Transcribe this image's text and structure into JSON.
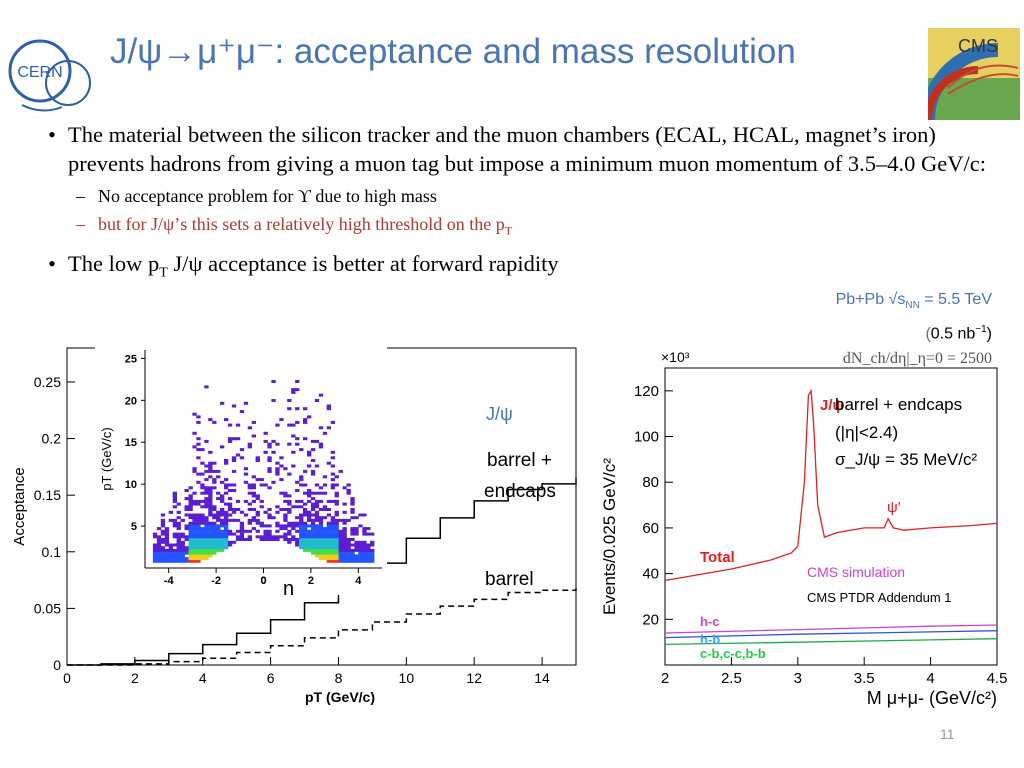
{
  "header": {
    "title": "J/ψ→μ⁺μ⁻: acceptance and mass resolution",
    "cern_logo_text": "CERN",
    "cms_logo_text": "CMS"
  },
  "bullets": {
    "b1": "The material between the silicon tracker and the muon chambers (ECAL, HCAL, magnet’s iron) prevents hadrons from giving a muon tag but impose a minimum muon momentum of 3.5–4.0 GeV/c:",
    "sub1": "No acceptance problem for ϒ due to high mass",
    "sub2_a": "but for J/ψ’s this sets a relatively high threshold on the p",
    "sub2_sub": "T",
    "b2_a": "The low p",
    "b2_sub": "T",
    "b2_b": " J/ψ acceptance is better at forward rapidity"
  },
  "right_header": {
    "line1_a": "Pb+Pb √s",
    "line1_sub": "NN",
    "line1_b": " = 5.5 TeV",
    "line2_a": "(",
    "line2_b": "0.5 nb",
    "line2_sup": "−1",
    "line2_c": ")",
    "line3": "dN_ch/dη|_η=0 = 2500"
  },
  "page_number": "11",
  "colors": {
    "title": "#4a74b3",
    "red": "#b03a2e",
    "magenta": "#cc44cc"
  },
  "chart_data": [
    {
      "type": "line",
      "title": "",
      "xlabel": "pT (GeV/c)",
      "ylabel": "Acceptance",
      "xlim": [
        0,
        15
      ],
      "ylim": [
        0,
        0.28
      ],
      "xticks": [
        "0",
        "2",
        "4",
        "6",
        "8",
        "10",
        "12",
        "14"
      ],
      "yticks": [
        "0",
        "0.05",
        "0.1",
        "0.15",
        "0.2",
        "0.25"
      ],
      "annotations": [
        "J/ψ",
        "barrel +",
        "endcaps",
        "barrel"
      ],
      "series": [
        {
          "name": "barrel + endcaps",
          "style": "solid",
          "x": [
            0,
            1,
            2,
            3,
            4,
            5,
            6,
            7,
            8,
            9,
            10,
            11,
            12,
            13,
            14,
            15
          ],
          "values": [
            0,
            0.001,
            0.004,
            0.01,
            0.018,
            0.028,
            0.04,
            0.055,
            0.07,
            0.09,
            0.112,
            0.13,
            0.145,
            0.155,
            0.16,
            0.165
          ]
        },
        {
          "name": "barrel",
          "style": "dashed",
          "x": [
            0,
            1,
            2,
            3,
            4,
            5,
            6,
            7,
            8,
            9,
            10,
            11,
            12,
            13,
            14,
            15
          ],
          "values": [
            0,
            0,
            0.001,
            0.003,
            0.006,
            0.011,
            0.017,
            0.024,
            0.031,
            0.038,
            0.045,
            0.052,
            0.058,
            0.064,
            0.066,
            0.068
          ]
        }
      ]
    },
    {
      "type": "heatmap",
      "xlabel": "η",
      "ylabel": "pT (GeV/c)",
      "xlim": [
        -5,
        5
      ],
      "ylim": [
        0,
        26
      ],
      "xticks": [
        "-4",
        "-2",
        "0",
        "2",
        "4"
      ],
      "yticks": [
        "5",
        "10",
        "15",
        "20",
        "25"
      ]
    },
    {
      "type": "line",
      "xlabel": "M μ+μ- (GeV/c²)",
      "ylabel": "Events/0.025 GeV/c²",
      "xlim": [
        2,
        4.5
      ],
      "ylim": [
        0,
        130
      ],
      "y_multiplier": "×10³",
      "xticks": [
        "2",
        "2.5",
        "3",
        "3.5",
        "4",
        "4.5"
      ],
      "yticks": [
        "20",
        "40",
        "60",
        "80",
        "100",
        "120"
      ],
      "labels": {
        "jpsi": "J/ψ",
        "psiprime": "ψ′",
        "total": "Total",
        "hc": "h-c",
        "hb": "h-b",
        "cb": "c-b,c-c,b-b"
      },
      "text_box": [
        "barrel + endcaps",
        "(|η|<2.4)",
        "σ_J/ψ = 35 MeV/c²"
      ],
      "sim_label": "CMS simulation",
      "ptdr_label": "CMS PTDR Addendum 1",
      "series": [
        {
          "name": "Total",
          "color": "#e02020",
          "x": [
            2,
            2.5,
            2.8,
            2.9,
            2.95,
            3.0,
            3.05,
            3.08,
            3.1,
            3.12,
            3.15,
            3.2,
            3.3,
            3.5,
            3.65,
            3.68,
            3.72,
            3.8,
            4.0,
            4.3,
            4.5
          ],
          "values": [
            37,
            42,
            46,
            48,
            49,
            52,
            80,
            118,
            120,
            105,
            70,
            56,
            58,
            60,
            60,
            64,
            60,
            59,
            60,
            61,
            62
          ]
        },
        {
          "name": "h-c",
          "color": "#cc44cc",
          "x": [
            2,
            3,
            4,
            4.5
          ],
          "values": [
            14,
            15.5,
            17,
            17.5
          ]
        },
        {
          "name": "h-b",
          "color": "#3355cc",
          "x": [
            2,
            3,
            4,
            4.5
          ],
          "values": [
            12,
            13.5,
            14.5,
            15
          ]
        },
        {
          "name": "c-b,c-c,b-b",
          "color": "#22aa44",
          "x": [
            2,
            3,
            4,
            4.5
          ],
          "values": [
            9,
            10,
            11,
            11.5
          ]
        }
      ]
    }
  ]
}
